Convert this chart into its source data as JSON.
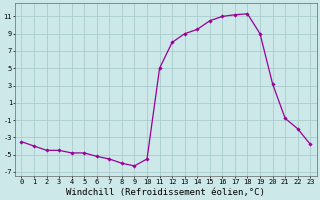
{
  "hours": [
    0,
    1,
    2,
    3,
    4,
    5,
    6,
    7,
    8,
    9,
    10,
    11,
    12,
    13,
    14,
    15,
    16,
    17,
    18,
    19,
    20,
    21,
    22,
    23
  ],
  "values": [
    -3.5,
    -4.0,
    -4.5,
    -4.5,
    -4.8,
    -4.8,
    -5.2,
    -5.5,
    -6.0,
    -6.3,
    -5.5,
    5.0,
    8.0,
    9.0,
    9.5,
    10.5,
    11.0,
    11.2,
    11.3,
    9.0,
    3.2,
    -0.8,
    -2.0,
    -3.8
  ],
  "line_color": "#990099",
  "marker": "D",
  "marker_size": 1.8,
  "bg_color": "#cce8e8",
  "grid_color": "#aacccc",
  "xlabel": "Windchill (Refroidissement éolien,°C)",
  "xlim": [
    -0.5,
    23.5
  ],
  "ylim": [
    -7.5,
    12.5
  ],
  "yticks": [
    -7,
    -5,
    -3,
    -1,
    1,
    3,
    5,
    7,
    9,
    11
  ],
  "xticks": [
    0,
    1,
    2,
    3,
    4,
    5,
    6,
    7,
    8,
    9,
    10,
    11,
    12,
    13,
    14,
    15,
    16,
    17,
    18,
    19,
    20,
    21,
    22,
    23
  ],
  "tick_fontsize": 5.0,
  "xlabel_fontsize": 6.5
}
